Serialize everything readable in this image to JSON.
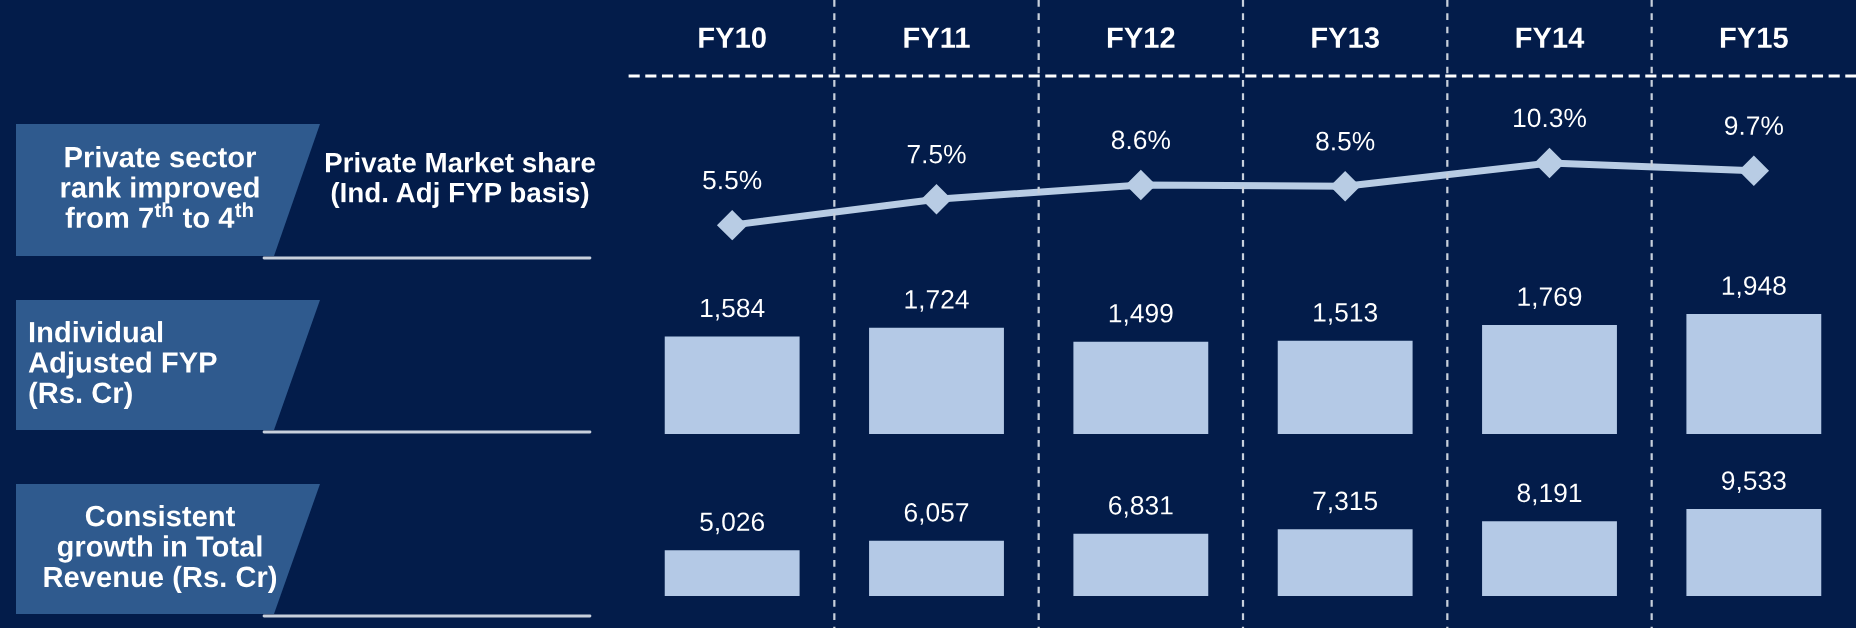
{
  "chart_data": [
    {
      "type": "line",
      "annotations": [
        "Private sector\nrank improved\nfrom 7$^{th}$ to 4$^{th}$"
      ],
      "ylabel": "Private Market share\n(Ind. Adj FYP basis)",
      "categories": [
        "FY10",
        "FY11",
        "FY12",
        "FY13",
        "FY14",
        "FY15"
      ],
      "values": [
        5.5,
        7.5,
        8.6,
        8.5,
        10.3,
        9.7
      ],
      "value_labels": [
        "5.5%",
        "7.5%",
        "8.6%",
        "8.5%",
        "10.3%",
        "9.7%"
      ],
      "color": "#b8cce4",
      "marker": "diamond",
      "line_style": "solid",
      "tick_labels": "x"
    },
    {
      "type": "bar",
      "ylabel": "Individual\nAdjusted FYP\n(Rs. Cr)",
      "categories": [
        null,
        null,
        null,
        null,
        null,
        null
      ],
      "values": [
        1584,
        1724,
        1499,
        1513,
        1769,
        1948
      ],
      "value_labels": [
        "1,584",
        "1,724",
        "1,499",
        "1,513",
        "1,769",
        "1,948"
      ],
      "color": "#b4c9e6",
      "tick_labels": false
    },
    {
      "type": "bar",
      "ylabel": "Consistent\ngrowth in Total\nRevenue (Rs. Cr)",
      "categories": [
        null,
        null,
        null,
        null,
        null,
        null
      ],
      "values": [
        5026,
        6057,
        6831,
        7315,
        8191,
        9533
      ],
      "value_labels": [
        "5,026",
        "6,057",
        "6,831",
        "7,315",
        "8,191",
        "9,533"
      ],
      "color": "#b4c9e6",
      "tick_labels": false
    }
  ]
}
